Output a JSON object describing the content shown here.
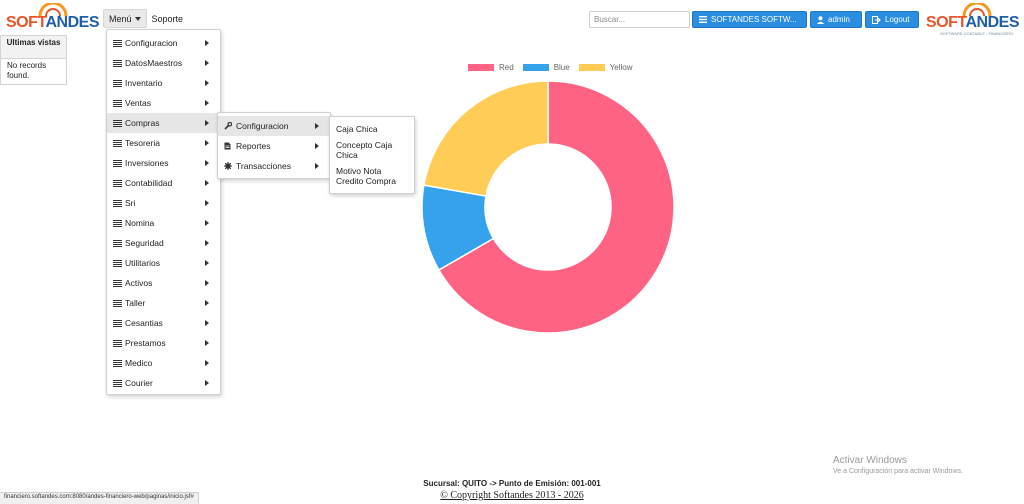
{
  "brand": {
    "logo_left": {
      "part1": "SOFT",
      "part2": "ANDES"
    },
    "logo_right": {
      "part1": "SOFT",
      "part2": "ANDES",
      "tagline": "SOFTWARE CONTABLE - FINANCIERO"
    }
  },
  "topbar": {
    "menu_label": "Menú",
    "soporte_label": "Soporte",
    "search_placeholder": "Buscar...",
    "company_button": "SOFTANDES SOFTW...",
    "user_button": "admin",
    "logout_button": "Logout"
  },
  "recent": {
    "title": "Ultimas vistas",
    "empty_text": "No records found."
  },
  "main_menu": {
    "items": [
      {
        "label": "Configuracion"
      },
      {
        "label": "DatosMaestros"
      },
      {
        "label": "Inventario"
      },
      {
        "label": "Ventas"
      },
      {
        "label": "Compras"
      },
      {
        "label": "Tesoreria"
      },
      {
        "label": "Inversiones"
      },
      {
        "label": "Contabilidad"
      },
      {
        "label": "Sri"
      },
      {
        "label": "Nomina"
      },
      {
        "label": "Seguridad"
      },
      {
        "label": "Utilitarios"
      },
      {
        "label": "Activos"
      },
      {
        "label": "Taller"
      },
      {
        "label": "Cesantias"
      },
      {
        "label": "Prestamos"
      },
      {
        "label": "Medico"
      },
      {
        "label": "Courier"
      }
    ],
    "active_item": "Compras"
  },
  "compras_menu": {
    "items": [
      {
        "label": "Configuracion",
        "icon": "wrench-icon"
      },
      {
        "label": "Reportes",
        "icon": "document-icon"
      },
      {
        "label": "Transacciones",
        "icon": "gear-icon"
      }
    ],
    "active_item": "Configuracion"
  },
  "configuracion_menu": {
    "items": [
      {
        "label": "Caja Chica"
      },
      {
        "label": "Concepto Caja Chica"
      },
      {
        "label": "Motivo Nota Credito Compra"
      }
    ]
  },
  "chart_data": {
    "type": "pie",
    "style": "doughnut",
    "categories": [
      "Red",
      "Blue",
      "Yellow"
    ],
    "values": [
      300,
      50,
      100
    ],
    "colors": [
      "#ff6384",
      "#36a2eb",
      "#ffcd56"
    ],
    "legend": "top"
  },
  "footer": {
    "sucursal": "Sucursal: QUITO -> Punto de Emisión: 001-001",
    "copyright": "© Copyright Softandes 2013 - 2026",
    "status_url": "financiero.softandes.com:8080/andes-financiero-web/paginas/inicio.jsf#"
  },
  "windows_activation": {
    "title": "Activar Windows",
    "subtitle": "Ve a Configuración para activar Windows."
  }
}
